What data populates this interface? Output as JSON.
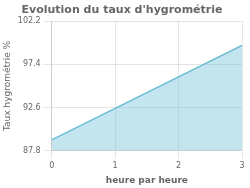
{
  "chart_data": {
    "type": "area",
    "title": "Evolution du taux d'hygrométrie",
    "xlabel": "heure par heure",
    "ylabel": "Taux hygrométrie %",
    "x": [
      0,
      3
    ],
    "values": [
      89.0,
      99.5
    ],
    "color": "#6bbdd4",
    "xlim": [
      0,
      3
    ],
    "xticks": [
      0,
      1,
      2,
      3
    ],
    "ylim": [
      87.8,
      102.2
    ],
    "yticks": [
      87.8,
      92.6,
      97.4,
      102.2
    ],
    "grid": true
  }
}
